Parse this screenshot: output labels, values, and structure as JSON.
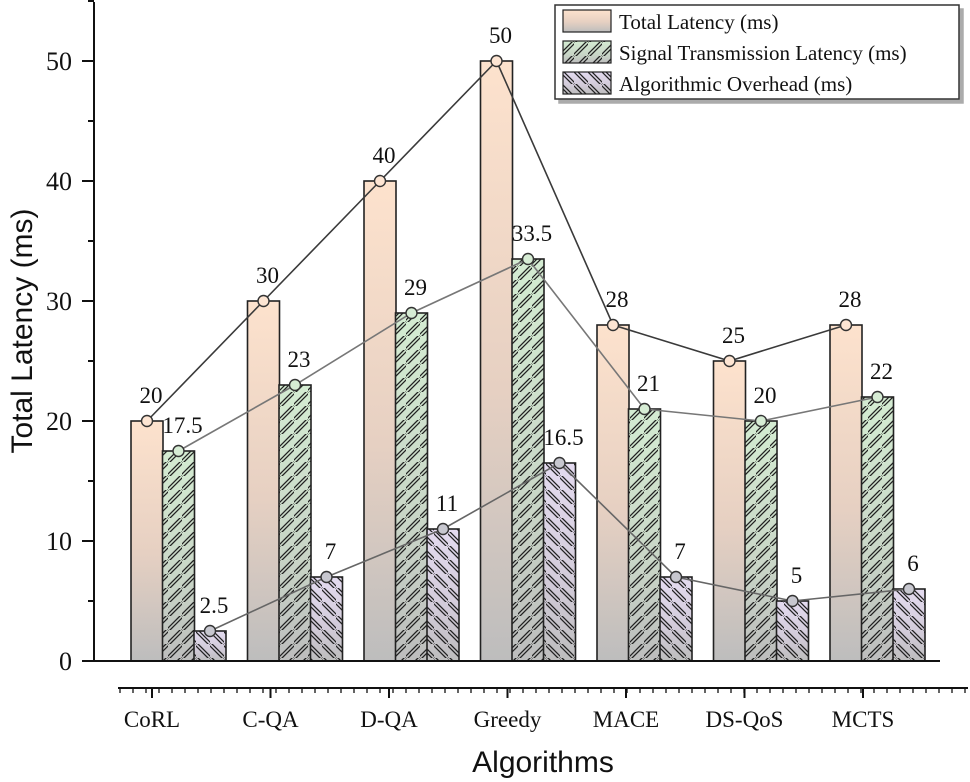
{
  "chart_data": {
    "type": "bar",
    "title": "",
    "xlabel": "Algorithms",
    "ylabel": "Total Latency (ms)",
    "ylim": [
      0,
      55
    ],
    "yticks": [
      0,
      10,
      20,
      30,
      40,
      50
    ],
    "categories": [
      "CoRL",
      "C-QA",
      "D-QA",
      "Greedy",
      "MACE",
      "DS-QoS",
      "MCTS"
    ],
    "series": [
      {
        "name": "Total Latency (ms)",
        "values": [
          20,
          30,
          40,
          50,
          28,
          25,
          28
        ],
        "labels": [
          "20",
          "30",
          "40",
          "50",
          "28",
          "25",
          "28"
        ],
        "color": "#f8d9c4",
        "pattern": "none"
      },
      {
        "name": "Signal Transmission Latency (ms)",
        "values": [
          17.5,
          23,
          29,
          33.5,
          21,
          20,
          22
        ],
        "labels": [
          "17.5",
          "23",
          "29",
          "33.5",
          "21",
          "20",
          "22"
        ],
        "color": "#cfe8cf",
        "pattern": "forward-hatch"
      },
      {
        "name": "Algorithmic Overhead (ms)",
        "values": [
          2.5,
          7,
          11,
          16.5,
          7,
          5,
          6
        ],
        "labels": [
          "2.5",
          "7",
          "11",
          "16.5",
          "7",
          "5",
          "6"
        ],
        "color": "#ddd3ea",
        "pattern": "back-hatch"
      }
    ],
    "legend_position": "top-right",
    "grid": false
  }
}
